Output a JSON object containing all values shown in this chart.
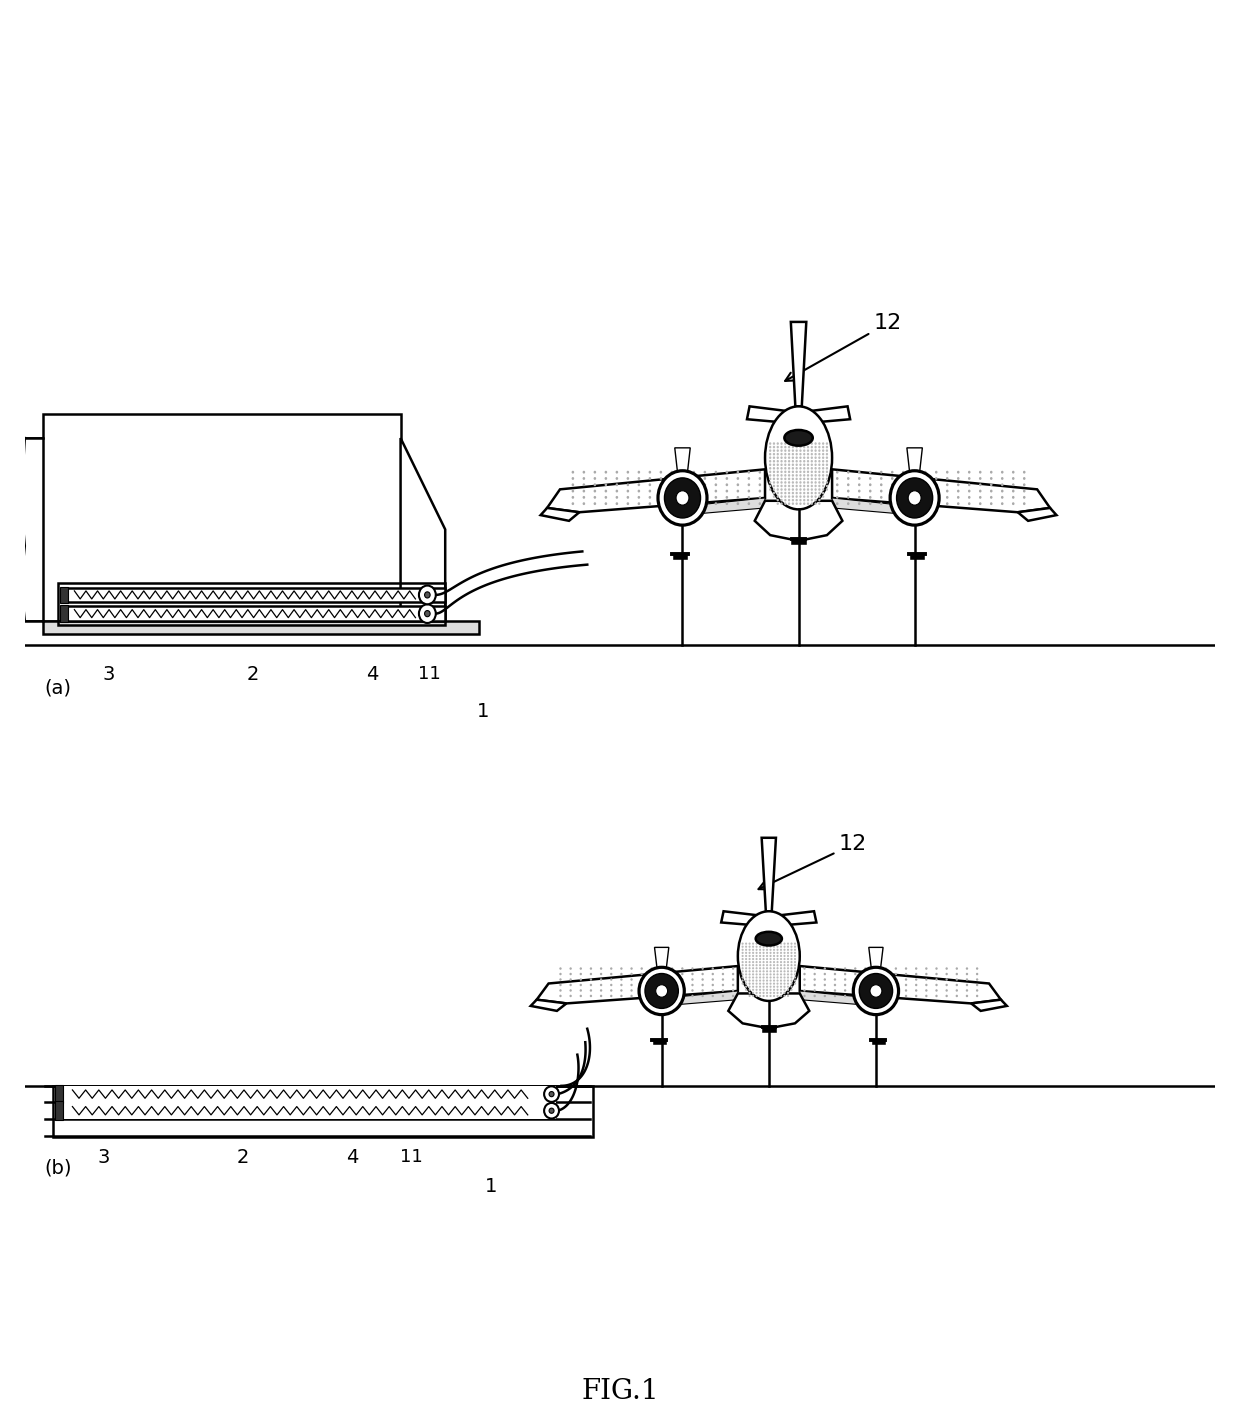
{
  "background_color": "#ffffff",
  "line_color": "#000000",
  "fig_width": 12.4,
  "fig_height": 14.27,
  "title": "FIG.1",
  "title_fontsize": 20,
  "label_fontsize": 14
}
